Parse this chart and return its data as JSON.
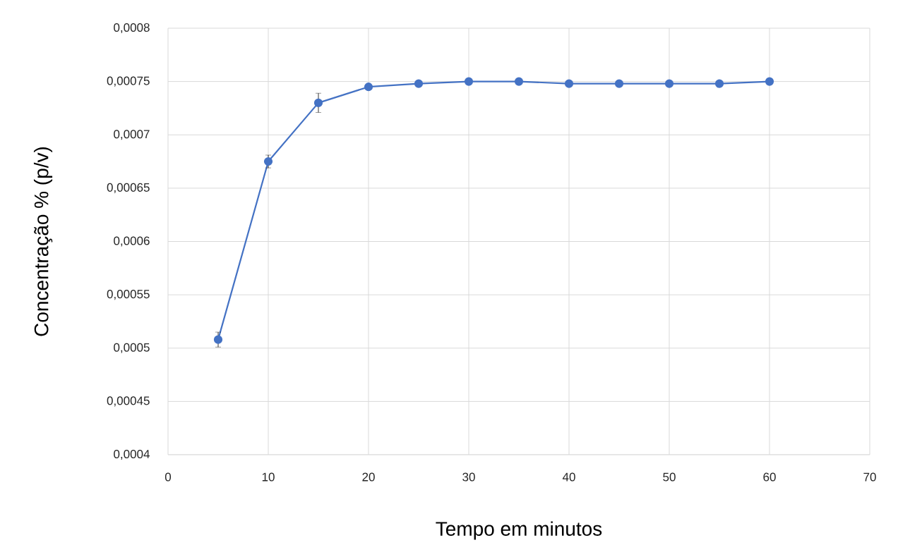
{
  "chart_data": {
    "type": "line",
    "xlabel": "Tempo em minutos",
    "ylabel": "Concentração % (p/v)",
    "x": [
      5,
      10,
      15,
      20,
      25,
      30,
      35,
      40,
      45,
      50,
      55,
      60
    ],
    "series": [
      {
        "color": "#4472c4",
        "values": [
          0.000508,
          0.000675,
          0.00073,
          0.000745,
          0.000748,
          0.00075,
          0.00075,
          0.000748,
          0.000748,
          0.000748,
          0.000748,
          0.00075
        ],
        "errors": [
          7e-06,
          6e-06,
          9e-06,
          null,
          null,
          null,
          null,
          null,
          null,
          null,
          null,
          null
        ]
      }
    ],
    "xlim": [
      0,
      70
    ],
    "xticks": [
      0,
      10,
      20,
      30,
      40,
      50,
      60,
      70
    ],
    "ylim": [
      0.0004,
      0.0008
    ],
    "yticks": [
      {
        "value": 0.0004,
        "label": "0,0004"
      },
      {
        "value": 0.00045,
        "label": "0,00045"
      },
      {
        "value": 0.0005,
        "label": "0,0005"
      },
      {
        "value": 0.00055,
        "label": "0,00055"
      },
      {
        "value": 0.0006,
        "label": "0,0006"
      },
      {
        "value": 0.00065,
        "label": "0,00065"
      },
      {
        "value": 0.0007,
        "label": "0,0007"
      },
      {
        "value": 0.00075,
        "label": "0,00075"
      },
      {
        "value": 0.0008,
        "label": "0,0008"
      }
    ],
    "grid": true,
    "marker": "circle",
    "line_style": "solid"
  }
}
